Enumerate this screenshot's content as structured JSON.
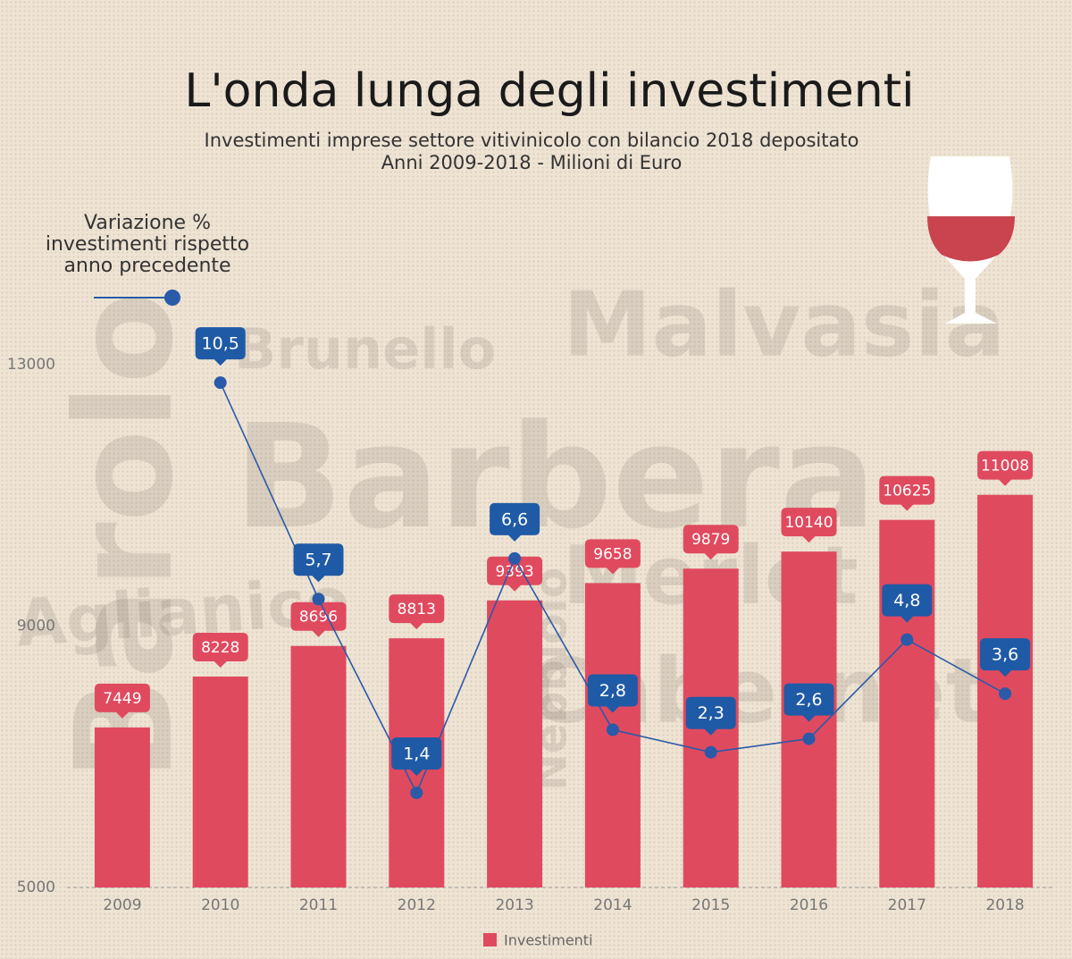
{
  "chart_data": {
    "type": "bar",
    "title": "L'onda lunga degli investimenti",
    "subtitle": [
      "Investimenti imprese settore vitivinicolo con bilancio 2018 depositato",
      "Anni 2009-2018 - Milioni di Euro"
    ],
    "categories": [
      "2009",
      "2010",
      "2011",
      "2012",
      "2013",
      "2014",
      "2015",
      "2016",
      "2017",
      "2018"
    ],
    "series": [
      {
        "name": "Investimenti",
        "type": "bar",
        "color": "#e04a5f",
        "values": [
          7449,
          8228,
          8696,
          8813,
          9393,
          9658,
          9879,
          10140,
          10625,
          11008
        ]
      },
      {
        "name": "Variazione % investimenti rispetto anno precedente",
        "type": "line",
        "axis": "y2",
        "color": "#2a5aa8",
        "values": [
          null,
          10.5,
          5.7,
          1.4,
          6.6,
          2.8,
          2.3,
          2.6,
          4.8,
          3.6
        ],
        "value_labels": [
          null,
          "10,5",
          "5,7",
          "1,4",
          "6,6",
          "2,8",
          "2,3",
          "2,6",
          "4,8",
          "3,6"
        ]
      }
    ],
    "ylim": [
      5000,
      13000
    ],
    "yticks": [
      5000,
      9000,
      13000
    ],
    "y2lim": [
      -0.7,
      10.9
    ],
    "grid": false,
    "watermark_words": [
      "Malvasia",
      "Brunello",
      "Barbera",
      "Barolo",
      "Aglianico",
      "Merlot",
      "Cabernet",
      "Nebbiolo"
    ]
  }
}
